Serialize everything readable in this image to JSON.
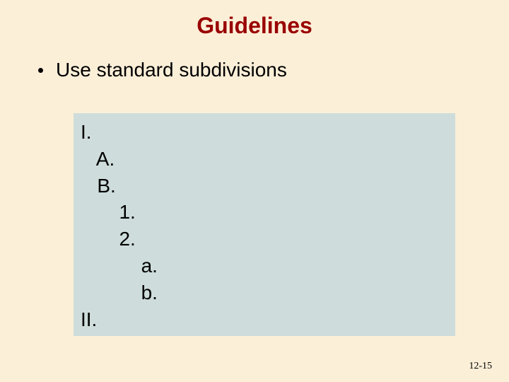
{
  "title": "Guidelines",
  "bullet": "Use standard subdivisions",
  "outline": {
    "l0a": "I.",
    "l1a": "   A.",
    "l1b": "   B.",
    "l2a": "       1.",
    "l2b": "       2.",
    "l3a": "           a.",
    "l3b": "           b.",
    "l0b": "II."
  },
  "page_number": "12-15",
  "colors": {
    "background": "#fcefd8",
    "title": "#990000",
    "box": "#cedddb",
    "text": "#000000"
  },
  "fonts": {
    "title_size": 32,
    "body_size": 28,
    "pagenum_size": 14
  }
}
